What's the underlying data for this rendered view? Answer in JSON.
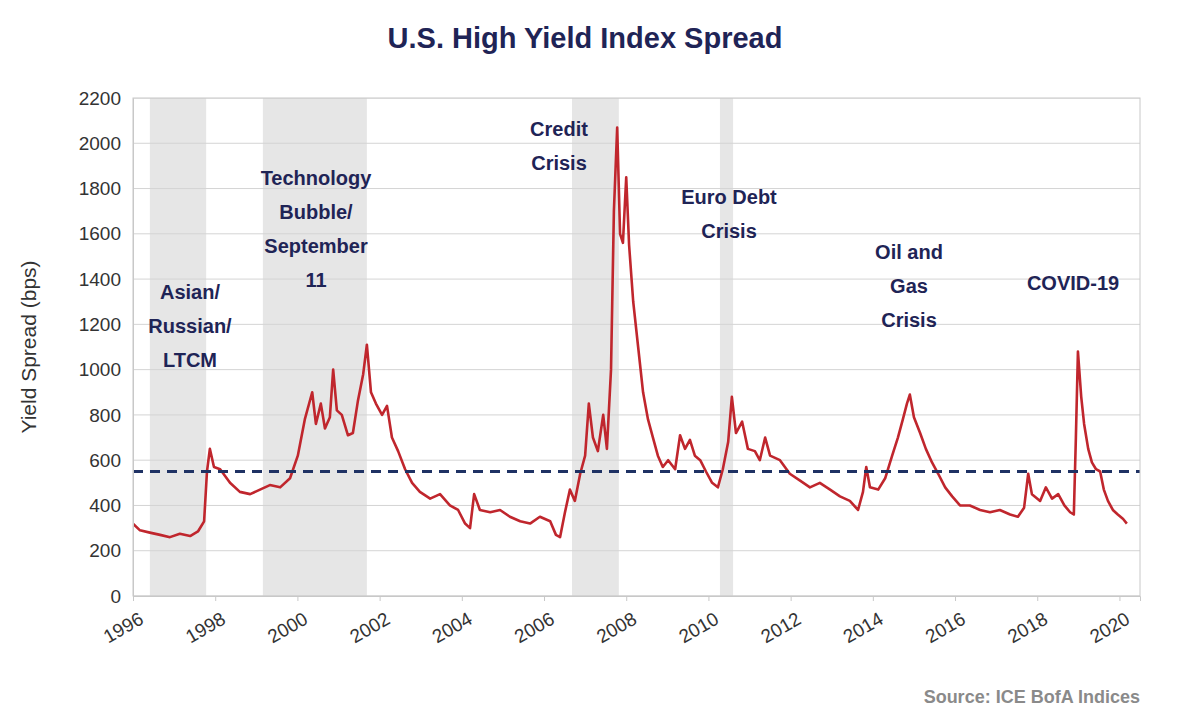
{
  "chart_data": {
    "type": "line",
    "title": "U.S. High Yield Index Spread",
    "y_label": "Yield Spread (bps)",
    "source": "Source: ICE BofA Indices",
    "color": "#c0262d",
    "grid": true,
    "xlim": [
      1996,
      2020.5
    ],
    "xticks": [
      1996,
      1998,
      2000,
      2002,
      2004,
      2006,
      2008,
      2010,
      2012,
      2014,
      2016,
      2018,
      2020
    ],
    "ylim": [
      0,
      2200
    ],
    "yticks": [
      0,
      200,
      400,
      600,
      800,
      1000,
      1200,
      1400,
      1600,
      1800,
      2000,
      2200
    ],
    "x": [
      1996.0,
      1996.17,
      1996.41,
      1996.66,
      1996.9,
      1997.14,
      1997.39,
      1997.58,
      1997.73,
      1997.8,
      1997.87,
      1997.97,
      1998.12,
      1998.36,
      1998.6,
      1998.85,
      1999.09,
      1999.33,
      1999.58,
      1999.82,
      2000.01,
      2000.18,
      2000.36,
      2000.45,
      2000.57,
      2000.67,
      2000.79,
      2000.87,
      2000.96,
      2001.08,
      2001.23,
      2001.35,
      2001.47,
      2001.6,
      2001.69,
      2001.79,
      2001.91,
      2002.06,
      2002.18,
      2002.3,
      2002.45,
      2002.62,
      2002.79,
      2002.98,
      2003.23,
      2003.47,
      2003.71,
      2003.91,
      2004.08,
      2004.2,
      2004.3,
      2004.44,
      2004.69,
      2004.93,
      2005.17,
      2005.42,
      2005.66,
      2005.9,
      2006.15,
      2006.29,
      2006.39,
      2006.51,
      2006.63,
      2006.75,
      2006.88,
      2007.0,
      2007.09,
      2007.19,
      2007.31,
      2007.44,
      2007.53,
      2007.63,
      2007.7,
      2007.78,
      2007.85,
      2007.92,
      2008.0,
      2008.07,
      2008.17,
      2008.29,
      2008.41,
      2008.53,
      2008.65,
      2008.77,
      2008.89,
      2009.02,
      2009.19,
      2009.31,
      2009.43,
      2009.55,
      2009.67,
      2009.8,
      2009.94,
      2010.09,
      2010.23,
      2010.35,
      2010.48,
      2010.57,
      2010.67,
      2010.82,
      2010.96,
      2011.13,
      2011.25,
      2011.38,
      2011.5,
      2011.74,
      2011.98,
      2012.23,
      2012.47,
      2012.71,
      2012.96,
      2013.2,
      2013.44,
      2013.64,
      2013.76,
      2013.84,
      2013.93,
      2014.13,
      2014.3,
      2014.47,
      2014.61,
      2014.73,
      2014.83,
      2014.9,
      2015.0,
      2015.15,
      2015.29,
      2015.44,
      2015.59,
      2015.76,
      2015.93,
      2016.12,
      2016.36,
      2016.61,
      2016.85,
      2017.09,
      2017.34,
      2017.53,
      2017.68,
      2017.78,
      2017.87,
      2018.07,
      2018.21,
      2018.36,
      2018.51,
      2018.66,
      2018.8,
      2018.89,
      2018.94,
      2018.99,
      2019.07,
      2019.14,
      2019.24,
      2019.33,
      2019.43,
      2019.53,
      2019.62,
      2019.72,
      2019.84,
      2019.96,
      2020.09,
      2020.18
    ],
    "values": [
      320,
      290,
      280,
      270,
      260,
      275,
      265,
      285,
      330,
      550,
      650,
      570,
      560,
      500,
      460,
      450,
      470,
      490,
      480,
      520,
      620,
      780,
      900,
      760,
      850,
      740,
      790,
      1000,
      820,
      800,
      710,
      720,
      860,
      980,
      1110,
      900,
      850,
      800,
      840,
      700,
      640,
      560,
      500,
      460,
      430,
      450,
      400,
      380,
      320,
      300,
      450,
      380,
      370,
      380,
      350,
      330,
      320,
      350,
      330,
      270,
      260,
      370,
      470,
      420,
      540,
      620,
      850,
      700,
      640,
      800,
      650,
      1000,
      1700,
      2070,
      1600,
      1560,
      1850,
      1550,
      1300,
      1100,
      900,
      780,
      700,
      620,
      570,
      600,
      560,
      710,
      650,
      690,
      620,
      600,
      550,
      500,
      480,
      560,
      680,
      880,
      720,
      770,
      650,
      640,
      600,
      700,
      620,
      600,
      540,
      510,
      480,
      500,
      470,
      440,
      420,
      380,
      460,
      570,
      480,
      470,
      520,
      620,
      700,
      780,
      850,
      890,
      790,
      720,
      650,
      590,
      540,
      480,
      440,
      400,
      400,
      380,
      370,
      380,
      360,
      350,
      390,
      540,
      450,
      420,
      480,
      430,
      450,
      400,
      370,
      360,
      700,
      1080,
      880,
      760,
      650,
      590,
      560,
      550,
      470,
      420,
      380,
      360,
      340,
      320
    ],
    "hline": 550,
    "bands": [
      [
        1996.41,
        1997.78
      ],
      [
        1999.16,
        2001.69
      ],
      [
        2006.68,
        2007.82
      ],
      [
        2010.28,
        2010.6
      ]
    ],
    "annotations": [
      {
        "lines": [
          "Asian/",
          "Russian/",
          "LTCM"
        ]
      },
      {
        "lines": [
          "Technology",
          "Bubble/",
          "September",
          "11"
        ]
      },
      {
        "lines": [
          "Credit",
          "Crisis"
        ]
      },
      {
        "lines": [
          "Euro Debt",
          "Crisis"
        ]
      },
      {
        "lines": [
          "Oil and",
          "Gas",
          "Crisis"
        ]
      },
      {
        "lines": [
          "COVID-19"
        ]
      }
    ]
  }
}
